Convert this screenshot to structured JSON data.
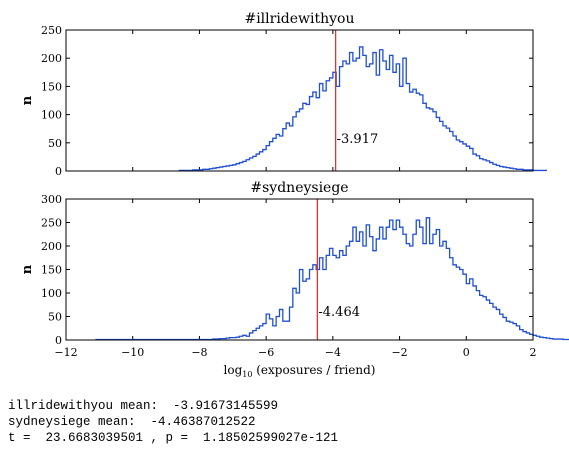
{
  "chart_data": [
    {
      "type": "histogram",
      "title": "#illridewithyou",
      "ylabel": "n",
      "xlim": [
        -12,
        2
      ],
      "ylim": [
        0,
        250
      ],
      "yticks": [
        0,
        50,
        100,
        150,
        200,
        250
      ],
      "color": "#1f4fd6",
      "mean_line": {
        "value": -3.917,
        "label": "-3.917",
        "color": "#e8312a"
      },
      "x_start": -8.6,
      "bin_width": 0.1,
      "counts": [
        1,
        1,
        1,
        1,
        2,
        2,
        2,
        3,
        3,
        4,
        5,
        6,
        7,
        8,
        9,
        10,
        11,
        13,
        15,
        17,
        20,
        23,
        26,
        30,
        34,
        38,
        45,
        52,
        58,
        65,
        62,
        75,
        85,
        80,
        96,
        105,
        110,
        120,
        118,
        132,
        140,
        130,
        155,
        142,
        160,
        165,
        175,
        150,
        185,
        195,
        190,
        210,
        195,
        200,
        220,
        205,
        185,
        190,
        210,
        170,
        215,
        195,
        180,
        205,
        175,
        190,
        150,
        200,
        155,
        140,
        145,
        138,
        135,
        120,
        112,
        110,
        105,
        95,
        88,
        80,
        76,
        70,
        62,
        55,
        52,
        48,
        44,
        40,
        30,
        27,
        22,
        20,
        18,
        15,
        12,
        10,
        8,
        7,
        6,
        5,
        4,
        3,
        3,
        2,
        2,
        2,
        1,
        1,
        1,
        1
      ]
    },
    {
      "type": "histogram",
      "title": "#sydneysiege",
      "ylabel": "n",
      "xlabel": "log",
      "xlabel_sub": "10",
      "xlabel_rest": " (exposures / friend)",
      "xlim": [
        -12,
        2
      ],
      "ylim": [
        0,
        300
      ],
      "yticks": [
        0,
        50,
        100,
        150,
        200,
        250,
        300
      ],
      "xticks": [
        "−12",
        "−10",
        "−8",
        "−6",
        "−4",
        "−2",
        "0",
        "2"
      ],
      "xtick_values": [
        -12,
        -10,
        -8,
        -6,
        -4,
        -2,
        0,
        2
      ],
      "color": "#1f4fd6",
      "mean_line": {
        "value": -4.464,
        "label": "-4.464",
        "color": "#e8312a"
      },
      "x_start": -11.1,
      "bin_width": 0.1,
      "counts": [
        1,
        1,
        1,
        1,
        1,
        1,
        1,
        1,
        1,
        1,
        1,
        1,
        1,
        1,
        1,
        1,
        1,
        1,
        1,
        1,
        1,
        1,
        1,
        1,
        1,
        1,
        1,
        1,
        1,
        1,
        1,
        1,
        1,
        1,
        1,
        2,
        2,
        3,
        3,
        4,
        5,
        5,
        6,
        8,
        10,
        8,
        15,
        20,
        25,
        30,
        35,
        55,
        45,
        30,
        50,
        65,
        40,
        40,
        70,
        110,
        100,
        150,
        125,
        130,
        150,
        160,
        150,
        175,
        150,
        180,
        195,
        180,
        175,
        190,
        180,
        200,
        210,
        240,
        210,
        230,
        200,
        245,
        220,
        190,
        215,
        240,
        215,
        240,
        255,
        235,
        255,
        240,
        225,
        205,
        200,
        225,
        255,
        240,
        205,
        260,
        205,
        225,
        235,
        200,
        210,
        195,
        175,
        160,
        155,
        150,
        140,
        120,
        130,
        115,
        105,
        95,
        92,
        85,
        78,
        70,
        65,
        55,
        48,
        40,
        38,
        35,
        30,
        22,
        18,
        15,
        12,
        10,
        8,
        6,
        5,
        4,
        3,
        2,
        2,
        2,
        1,
        1,
        1,
        1,
        1,
        1,
        1,
        1,
        1,
        1,
        1,
        1,
        1,
        1
      ]
    }
  ],
  "console": {
    "line1": "illridewithyou mean:  -3.91673145599",
    "line2": "sydneysiege mean:  -4.46387012522",
    "line3": "t =  23.6683039501 , p =  1.18502599027e-121"
  }
}
